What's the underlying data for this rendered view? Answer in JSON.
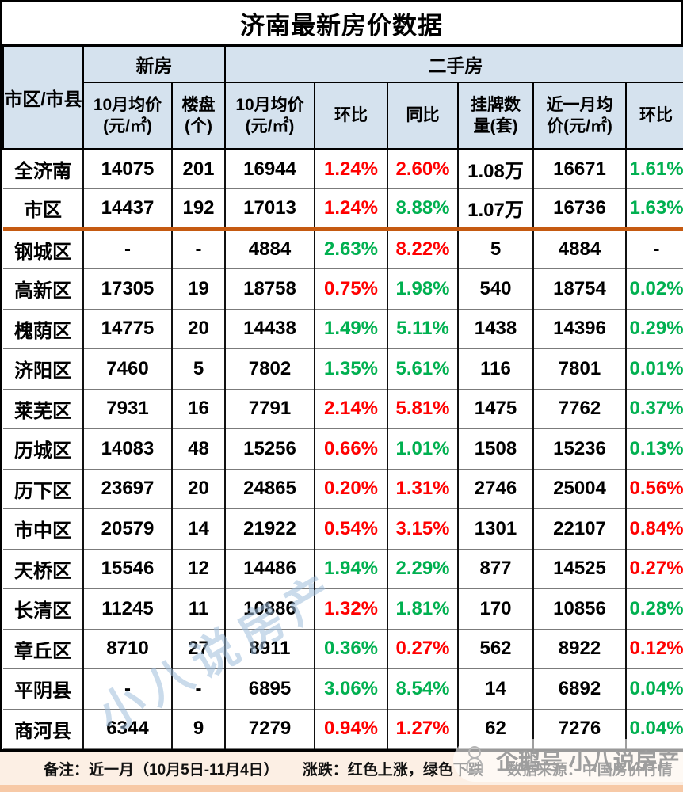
{
  "colors": {
    "red": "#FF0000",
    "green": "#00B050",
    "divider": "#C55A11",
    "header_bg": "#D5E2EE",
    "footer_bg": "#FCEFE4",
    "footer_strip": "#F7C9A6",
    "watermark": "#9FBEDC"
  },
  "chart_data": {
    "type": "table",
    "title": "济南最新房价数据",
    "column_groups": [
      {
        "label": "市区/市县",
        "span": 1
      },
      {
        "label": "新房",
        "span": 2
      },
      {
        "label": "二手房",
        "span": 6
      }
    ],
    "columns": [
      "市区/市县",
      "新房10月均价(元/㎡)",
      "新房楼盘(个)",
      "二手房10月均价(元/㎡)",
      "二手房环比",
      "二手房同比",
      "挂牌数量(套)",
      "近一月均价(元/㎡)",
      "近一月环比"
    ],
    "sub_headers": [
      {
        "line1": "10月均价",
        "line2": "(元/㎡)"
      },
      {
        "line1": "楼盘",
        "line2": "(个)"
      },
      {
        "line1": "10月均价",
        "line2": "(元/㎡)"
      },
      {
        "line1": "环比",
        "line2": ""
      },
      {
        "line1": "同比",
        "line2": ""
      },
      {
        "line1": "挂牌数",
        "line2": "量(套)"
      },
      {
        "line1": "近一月均",
        "line2": "价(元/㎡)"
      },
      {
        "line1": "环比",
        "line2": ""
      }
    ],
    "rows": [
      {
        "region": "全济南",
        "new_avg": "14075",
        "new_count": "201",
        "used_avg": "16944",
        "used_mom": {
          "v": "1.24%",
          "c": "red"
        },
        "used_yoy": {
          "v": "2.60%",
          "c": "red"
        },
        "listings": "1.08万",
        "month_avg": "16671",
        "month_mom": {
          "v": "1.61%",
          "c": "green"
        }
      },
      {
        "region": "市区",
        "new_avg": "14437",
        "new_count": "192",
        "used_avg": "17013",
        "used_mom": {
          "v": "1.24%",
          "c": "red"
        },
        "used_yoy": {
          "v": "8.88%",
          "c": "green"
        },
        "listings": "1.07万",
        "month_avg": "16736",
        "month_mom": {
          "v": "1.63%",
          "c": "green"
        },
        "divider_below": true
      },
      {
        "region": "钢城区",
        "new_avg": "-",
        "new_count": "-",
        "used_avg": "4884",
        "used_mom": {
          "v": "2.63%",
          "c": "green"
        },
        "used_yoy": {
          "v": "8.22%",
          "c": "red"
        },
        "listings": "5",
        "month_avg": "4884",
        "month_mom": {
          "v": "-",
          "c": "black"
        }
      },
      {
        "region": "高新区",
        "new_avg": "17305",
        "new_count": "19",
        "used_avg": "18758",
        "used_mom": {
          "v": "0.75%",
          "c": "red"
        },
        "used_yoy": {
          "v": "1.98%",
          "c": "green"
        },
        "listings": "540",
        "month_avg": "18754",
        "month_mom": {
          "v": "0.02%",
          "c": "green"
        }
      },
      {
        "region": "槐荫区",
        "new_avg": "14775",
        "new_count": "20",
        "used_avg": "14438",
        "used_mom": {
          "v": "1.49%",
          "c": "green"
        },
        "used_yoy": {
          "v": "5.11%",
          "c": "green"
        },
        "listings": "1438",
        "month_avg": "14396",
        "month_mom": {
          "v": "0.29%",
          "c": "green"
        }
      },
      {
        "region": "济阳区",
        "new_avg": "7460",
        "new_count": "5",
        "used_avg": "7802",
        "used_mom": {
          "v": "1.35%",
          "c": "green"
        },
        "used_yoy": {
          "v": "5.61%",
          "c": "green"
        },
        "listings": "116",
        "month_avg": "7801",
        "month_mom": {
          "v": "0.01%",
          "c": "green"
        }
      },
      {
        "region": "莱芜区",
        "new_avg": "7931",
        "new_count": "16",
        "used_avg": "7791",
        "used_mom": {
          "v": "2.14%",
          "c": "red"
        },
        "used_yoy": {
          "v": "5.81%",
          "c": "red"
        },
        "listings": "1475",
        "month_avg": "7762",
        "month_mom": {
          "v": "0.37%",
          "c": "green"
        }
      },
      {
        "region": "历城区",
        "new_avg": "14083",
        "new_count": "48",
        "used_avg": "15256",
        "used_mom": {
          "v": "0.66%",
          "c": "red"
        },
        "used_yoy": {
          "v": "1.01%",
          "c": "green"
        },
        "listings": "1508",
        "month_avg": "15236",
        "month_mom": {
          "v": "0.13%",
          "c": "green"
        }
      },
      {
        "region": "历下区",
        "new_avg": "23697",
        "new_count": "20",
        "used_avg": "24865",
        "used_mom": {
          "v": "0.20%",
          "c": "red"
        },
        "used_yoy": {
          "v": "1.31%",
          "c": "red"
        },
        "listings": "2746",
        "month_avg": "25004",
        "month_mom": {
          "v": "0.56%",
          "c": "red"
        }
      },
      {
        "region": "市中区",
        "new_avg": "20579",
        "new_count": "14",
        "used_avg": "21922",
        "used_mom": {
          "v": "0.54%",
          "c": "red"
        },
        "used_yoy": {
          "v": "3.15%",
          "c": "red"
        },
        "listings": "1301",
        "month_avg": "22107",
        "month_mom": {
          "v": "0.84%",
          "c": "red"
        }
      },
      {
        "region": "天桥区",
        "new_avg": "15546",
        "new_count": "12",
        "used_avg": "14486",
        "used_mom": {
          "v": "1.94%",
          "c": "green"
        },
        "used_yoy": {
          "v": "2.29%",
          "c": "green"
        },
        "listings": "877",
        "month_avg": "14525",
        "month_mom": {
          "v": "0.27%",
          "c": "red"
        }
      },
      {
        "region": "长清区",
        "new_avg": "11245",
        "new_count": "11",
        "used_avg": "10886",
        "used_mom": {
          "v": "1.32%",
          "c": "red"
        },
        "used_yoy": {
          "v": "1.81%",
          "c": "green"
        },
        "listings": "170",
        "month_avg": "10856",
        "month_mom": {
          "v": "0.28%",
          "c": "green"
        }
      },
      {
        "region": "章丘区",
        "new_avg": "8710",
        "new_count": "27",
        "used_avg": "8911",
        "used_mom": {
          "v": "0.36%",
          "c": "green"
        },
        "used_yoy": {
          "v": "0.27%",
          "c": "red"
        },
        "listings": "562",
        "month_avg": "8922",
        "month_mom": {
          "v": "0.12%",
          "c": "red"
        }
      },
      {
        "region": "平阴县",
        "new_avg": "-",
        "new_count": "-",
        "used_avg": "6895",
        "used_mom": {
          "v": "3.06%",
          "c": "green"
        },
        "used_yoy": {
          "v": "8.54%",
          "c": "green"
        },
        "listings": "14",
        "month_avg": "6892",
        "month_mom": {
          "v": "0.04%",
          "c": "green"
        }
      },
      {
        "region": "商河县",
        "new_avg": "6344",
        "new_count": "9",
        "used_avg": "7279",
        "used_mom": {
          "v": "0.94%",
          "c": "red"
        },
        "used_yoy": {
          "v": "1.27%",
          "c": "red"
        },
        "listings": "62",
        "month_avg": "7276",
        "month_mom": {
          "v": "0.04%",
          "c": "green"
        }
      }
    ],
    "legend_note": "红色上涨，绿色下跌"
  },
  "footer": {
    "note": "备注：近一月（10月5日-11月4日）",
    "legend": "涨跌：红色上涨，绿色下跌",
    "source": "数据来源：中国房价行情"
  },
  "watermarks": {
    "diagonal": "小八说房产",
    "badge": "企鹅号 小八说房产"
  }
}
